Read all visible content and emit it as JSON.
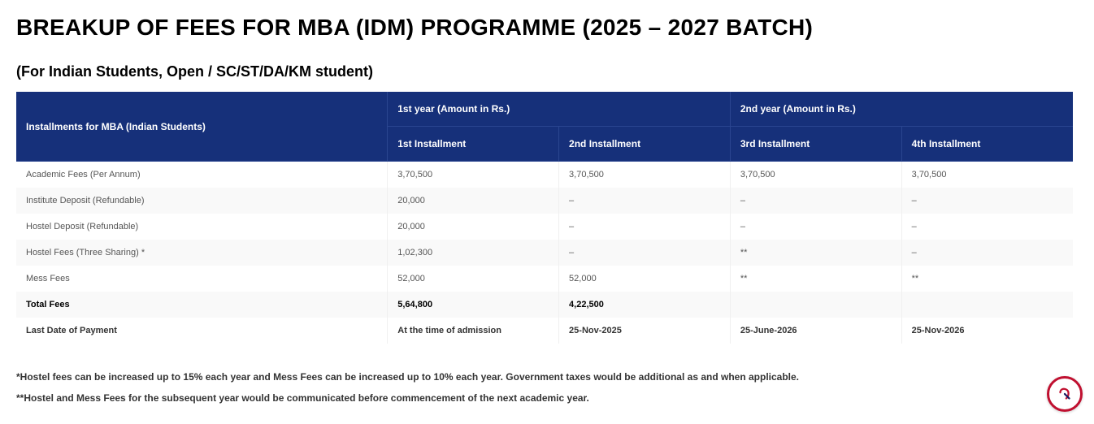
{
  "title": "BREAKUP OF FEES FOR MBA (IDM) PROGRAMME (2025 – 2027 BATCH)",
  "subtitle": "(For Indian Students, Open / SC/ST/DA/KM student)",
  "table": {
    "corner_header": "Installments for MBA (Indian Students)",
    "year_headers": [
      "1st year (Amount in Rs.)",
      "2nd year (Amount in Rs.)"
    ],
    "inst_headers": [
      "1st Installment",
      "2nd Installment",
      "3rd Installment",
      "4th Installment"
    ],
    "rows": [
      {
        "label": "Academic Fees (Per Annum)",
        "c1": "3,70,500",
        "c2": "3,70,500",
        "c3": "3,70,500",
        "c4": "3,70,500",
        "bold": false
      },
      {
        "label": "Institute Deposit (Refundable)",
        "c1": "20,000",
        "c2": "–",
        "c3": "–",
        "c4": "–",
        "bold": false
      },
      {
        "label": "Hostel Deposit (Refundable)",
        "c1": "20,000",
        "c2": "–",
        "c3": "–",
        "c4": "–",
        "bold": false
      },
      {
        "label": "Hostel Fees (Three Sharing) *",
        "c1": "1,02,300",
        "c2": "–",
        "c3": "**",
        "c4": "–",
        "bold": false
      },
      {
        "label": "Mess Fees",
        "c1": "52,000",
        "c2": "52,000",
        "c3": "**",
        "c4": "**",
        "bold": false
      },
      {
        "label": "Total Fees",
        "c1": "5,64,800",
        "c2": "4,22,500",
        "c3": "",
        "c4": "",
        "bold": true
      },
      {
        "label": "Last Date of Payment",
        "c1": "At the time of admission",
        "c2": "25-Nov-2025",
        "c3": "25-June-2026",
        "c4": "25-Nov-2026",
        "bold": false,
        "lastpay": true
      }
    ]
  },
  "notes": [
    "*Hostel fees can be increased up to 15% each year and Mess Fees can be increased up to 10% each year. Government taxes would be additional as and when applicable.",
    "**Hostel and Mess Fees for the subsequent year would be communicated before commencement of the next academic year."
  ],
  "colors": {
    "header_bg": "#16307a",
    "header_border": "#2a4590",
    "row_alt": "#f9f9f9",
    "text_body": "#555555",
    "logo_ring": "#c01030"
  }
}
